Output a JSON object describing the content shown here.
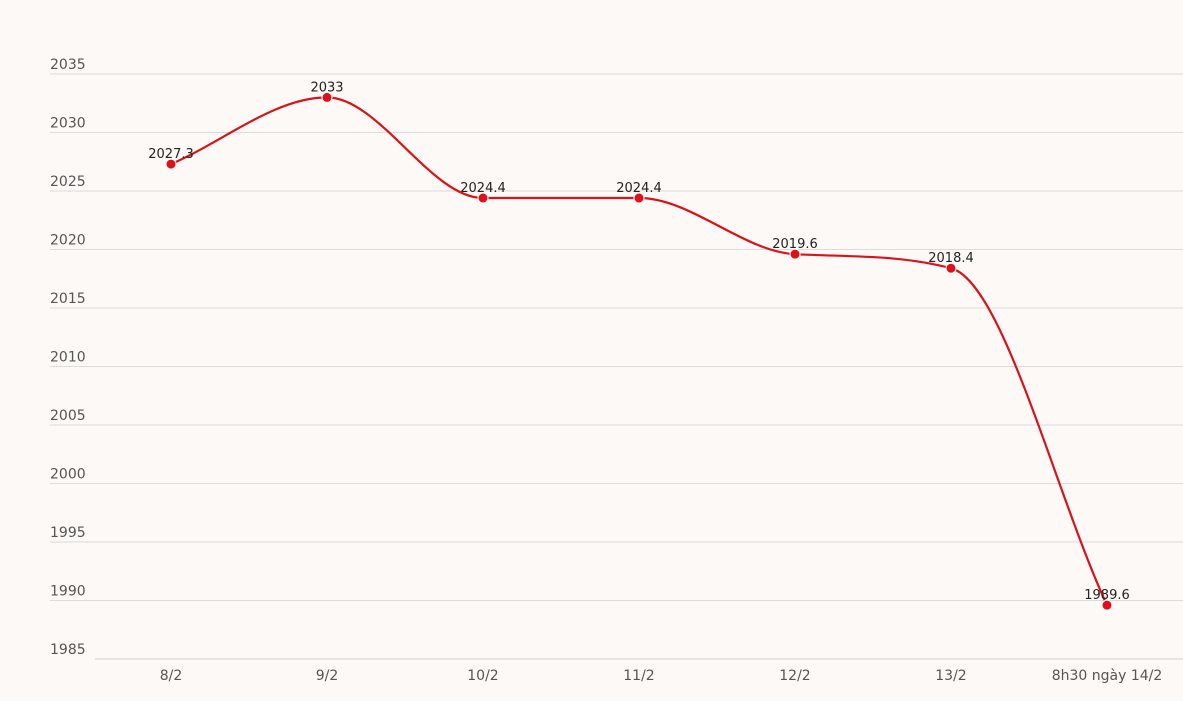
{
  "chart_data": {
    "type": "line",
    "title": "",
    "xlabel": "",
    "ylabel": "",
    "categories": [
      "8/2",
      "9/2",
      "10/2",
      "11/2",
      "12/2",
      "13/2",
      "8h30 ngày 14/2"
    ],
    "series": [
      {
        "values": [
          2027.3,
          2033,
          2024.4,
          2024.4,
          2019.6,
          2018.4,
          1989.6
        ],
        "labels": [
          "2027.3",
          "2033",
          "2024.4",
          "2024.4",
          "2019.6",
          "2018.4",
          "1989.6"
        ]
      }
    ],
    "ylim": [
      1985,
      2035
    ],
    "yticks": [
      "1985",
      "1990",
      "1995",
      "2000",
      "2005",
      "2010",
      "2015",
      "2020",
      "2025",
      "2030",
      "2035"
    ],
    "grid": true,
    "legend": "none",
    "colors": {
      "line": "#d7131b",
      "marker": "#e0101a",
      "grid": "#dcdcdc",
      "background": "#fdf9f6"
    }
  }
}
